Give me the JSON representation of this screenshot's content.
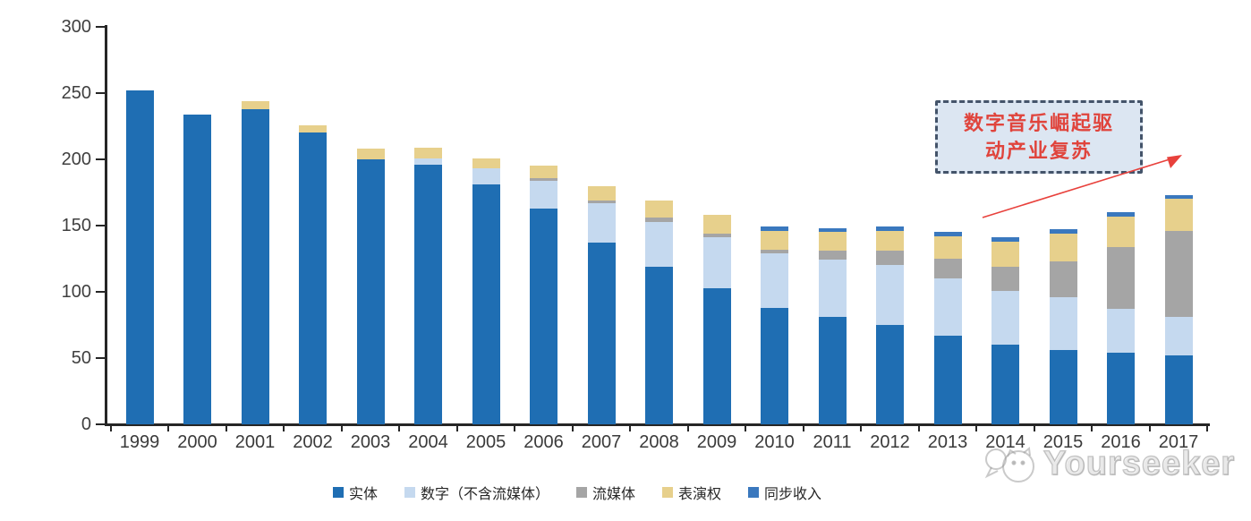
{
  "chart_data": {
    "type": "bar",
    "stacked": true,
    "title": "",
    "xlabel": "",
    "ylabel": "",
    "categories": [
      "1999",
      "2000",
      "2001",
      "2002",
      "2003",
      "2004",
      "2005",
      "2006",
      "2007",
      "2008",
      "2009",
      "2010",
      "2011",
      "2012",
      "2013",
      "2014",
      "2015",
      "2016",
      "2017"
    ],
    "series": [
      {
        "name": "实体",
        "color": "#1F6EB3",
        "values": [
          252,
          234,
          238,
          220,
          200,
          196,
          181,
          163,
          137,
          119,
          103,
          88,
          81,
          75,
          67,
          60,
          56,
          54,
          52
        ]
      },
      {
        "name": "数字（不含流媒体）",
        "color": "#C5D9EF",
        "values": [
          0,
          0,
          0,
          0,
          0,
          5,
          12,
          21,
          30,
          34,
          38,
          41,
          43,
          45,
          43,
          41,
          40,
          33,
          29
        ]
      },
      {
        "name": "流媒体",
        "color": "#A5A5A5",
        "values": [
          0,
          0,
          0,
          0,
          0,
          0,
          0,
          2,
          2,
          3,
          3,
          3,
          7,
          11,
          15,
          18,
          27,
          47,
          65
        ]
      },
      {
        "name": "表演权",
        "color": "#E7D08C",
        "values": [
          0,
          0,
          6,
          6,
          8,
          8,
          8,
          9,
          11,
          13,
          14,
          14,
          14,
          15,
          17,
          19,
          21,
          23,
          24
        ]
      },
      {
        "name": "同步收入",
        "color": "#3A78BE",
        "values": [
          0,
          0,
          0,
          0,
          0,
          0,
          0,
          0,
          0,
          0,
          0,
          3,
          3,
          3,
          3,
          3,
          3,
          3,
          3
        ]
      }
    ],
    "ylim": [
      0,
      300
    ],
    "yticks": [
      0,
      50,
      100,
      150,
      200,
      250,
      300
    ],
    "grid": false,
    "legend_position": "bottom"
  },
  "annotation": {
    "line1": "数字音乐崛起驱",
    "line2": "动产业复苏",
    "box_fill": "#DCE6F2",
    "border_color": "#44546A",
    "text_color": "#E0443C",
    "arrow_color": "#E8413C"
  },
  "watermark": {
    "text": "Yourseeker",
    "color": "#B5B5B5"
  },
  "axis_color": "#262626",
  "label_color": "#3F3F3F"
}
